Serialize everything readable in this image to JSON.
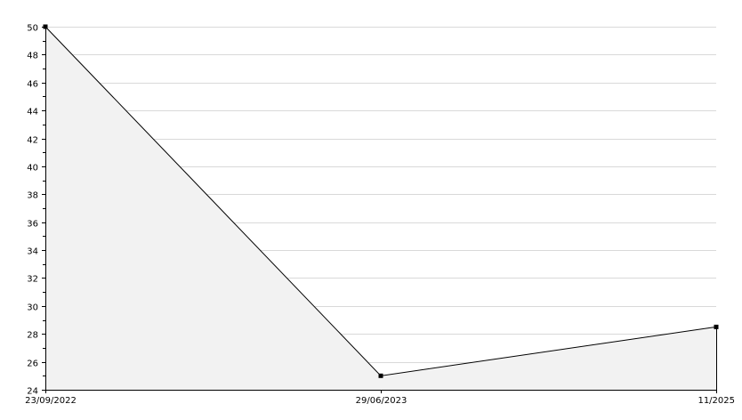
{
  "chart_data": {
    "type": "area",
    "categories": [
      "23/09/2022",
      "29/06/2023",
      "11/2025"
    ],
    "values": [
      50,
      25,
      28.5
    ],
    "title": "",
    "xlabel": "",
    "ylabel": "",
    "ylim": [
      24,
      50
    ],
    "yticks": [
      "24",
      "26",
      "28",
      "30",
      "32",
      "34",
      "36",
      "38",
      "40",
      "42",
      "44",
      "46",
      "48",
      "50"
    ],
    "grid": true,
    "legend": "none",
    "colors": {
      "line": "#000000",
      "fill": "#f2f2f2",
      "grid": "#d9d9d9",
      "marker": "#000000"
    }
  }
}
